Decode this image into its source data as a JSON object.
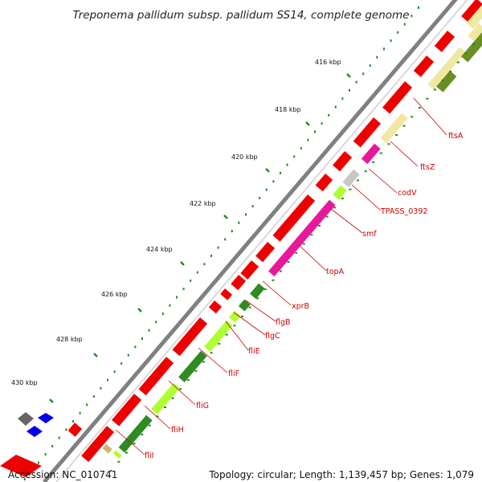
{
  "title": "Treponema pallidum subsp. pallidum SS14, complete genome",
  "accession_line": "Accession: NC_010741",
  "summary_line": "Topology: circular; Length: 1,139,457 bp; Genes: 1,079",
  "axis_labels": [
    "416 kbp",
    "418 kbp",
    "420 kbp",
    "422 kbp",
    "424 kbp",
    "426 kbp",
    "428 kbp",
    "430 kbp"
  ],
  "gene_labels": [
    "ftsA",
    "ftsZ",
    "codV",
    "TPASS_0392",
    "smf",
    "topA",
    "xprB",
    "flgB",
    "flgC",
    "fliE",
    "fliF",
    "fliG",
    "fliH",
    "fliI"
  ],
  "colors": {
    "cds": "#ee0000",
    "label": "#cc0000",
    "pink": "#e8189a",
    "khaki": "#f0e8a0",
    "olive": "#6b8e23",
    "dark_green": "#2e8b22",
    "lime": "#adff2f",
    "grey": "#c8c8c8",
    "backbone": "#808080",
    "tick": "#228b22",
    "blue": "#0000ee"
  }
}
